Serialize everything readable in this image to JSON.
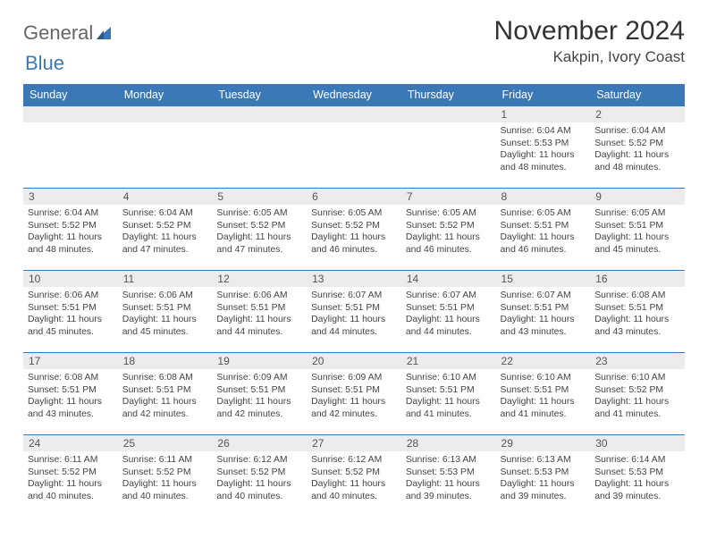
{
  "logo": {
    "text1": "General",
    "text2": "Blue"
  },
  "title": "November 2024",
  "location": "Kakpin, Ivory Coast",
  "colors": {
    "header_bg": "#3a78b8",
    "header_text": "#ffffff",
    "daynum_bg": "#ececec",
    "border": "#3a78b8",
    "text": "#444444",
    "logo_general": "#666666",
    "logo_blue": "#3a78b8"
  },
  "weekdays": [
    "Sunday",
    "Monday",
    "Tuesday",
    "Wednesday",
    "Thursday",
    "Friday",
    "Saturday"
  ],
  "weeks": [
    [
      null,
      null,
      null,
      null,
      null,
      {
        "n": "1",
        "sr": "Sunrise: 6:04 AM",
        "ss": "Sunset: 5:53 PM",
        "dl": "Daylight: 11 hours and 48 minutes."
      },
      {
        "n": "2",
        "sr": "Sunrise: 6:04 AM",
        "ss": "Sunset: 5:52 PM",
        "dl": "Daylight: 11 hours and 48 minutes."
      }
    ],
    [
      {
        "n": "3",
        "sr": "Sunrise: 6:04 AM",
        "ss": "Sunset: 5:52 PM",
        "dl": "Daylight: 11 hours and 48 minutes."
      },
      {
        "n": "4",
        "sr": "Sunrise: 6:04 AM",
        "ss": "Sunset: 5:52 PM",
        "dl": "Daylight: 11 hours and 47 minutes."
      },
      {
        "n": "5",
        "sr": "Sunrise: 6:05 AM",
        "ss": "Sunset: 5:52 PM",
        "dl": "Daylight: 11 hours and 47 minutes."
      },
      {
        "n": "6",
        "sr": "Sunrise: 6:05 AM",
        "ss": "Sunset: 5:52 PM",
        "dl": "Daylight: 11 hours and 46 minutes."
      },
      {
        "n": "7",
        "sr": "Sunrise: 6:05 AM",
        "ss": "Sunset: 5:52 PM",
        "dl": "Daylight: 11 hours and 46 minutes."
      },
      {
        "n": "8",
        "sr": "Sunrise: 6:05 AM",
        "ss": "Sunset: 5:51 PM",
        "dl": "Daylight: 11 hours and 46 minutes."
      },
      {
        "n": "9",
        "sr": "Sunrise: 6:05 AM",
        "ss": "Sunset: 5:51 PM",
        "dl": "Daylight: 11 hours and 45 minutes."
      }
    ],
    [
      {
        "n": "10",
        "sr": "Sunrise: 6:06 AM",
        "ss": "Sunset: 5:51 PM",
        "dl": "Daylight: 11 hours and 45 minutes."
      },
      {
        "n": "11",
        "sr": "Sunrise: 6:06 AM",
        "ss": "Sunset: 5:51 PM",
        "dl": "Daylight: 11 hours and 45 minutes."
      },
      {
        "n": "12",
        "sr": "Sunrise: 6:06 AM",
        "ss": "Sunset: 5:51 PM",
        "dl": "Daylight: 11 hours and 44 minutes."
      },
      {
        "n": "13",
        "sr": "Sunrise: 6:07 AM",
        "ss": "Sunset: 5:51 PM",
        "dl": "Daylight: 11 hours and 44 minutes."
      },
      {
        "n": "14",
        "sr": "Sunrise: 6:07 AM",
        "ss": "Sunset: 5:51 PM",
        "dl": "Daylight: 11 hours and 44 minutes."
      },
      {
        "n": "15",
        "sr": "Sunrise: 6:07 AM",
        "ss": "Sunset: 5:51 PM",
        "dl": "Daylight: 11 hours and 43 minutes."
      },
      {
        "n": "16",
        "sr": "Sunrise: 6:08 AM",
        "ss": "Sunset: 5:51 PM",
        "dl": "Daylight: 11 hours and 43 minutes."
      }
    ],
    [
      {
        "n": "17",
        "sr": "Sunrise: 6:08 AM",
        "ss": "Sunset: 5:51 PM",
        "dl": "Daylight: 11 hours and 43 minutes."
      },
      {
        "n": "18",
        "sr": "Sunrise: 6:08 AM",
        "ss": "Sunset: 5:51 PM",
        "dl": "Daylight: 11 hours and 42 minutes."
      },
      {
        "n": "19",
        "sr": "Sunrise: 6:09 AM",
        "ss": "Sunset: 5:51 PM",
        "dl": "Daylight: 11 hours and 42 minutes."
      },
      {
        "n": "20",
        "sr": "Sunrise: 6:09 AM",
        "ss": "Sunset: 5:51 PM",
        "dl": "Daylight: 11 hours and 42 minutes."
      },
      {
        "n": "21",
        "sr": "Sunrise: 6:10 AM",
        "ss": "Sunset: 5:51 PM",
        "dl": "Daylight: 11 hours and 41 minutes."
      },
      {
        "n": "22",
        "sr": "Sunrise: 6:10 AM",
        "ss": "Sunset: 5:51 PM",
        "dl": "Daylight: 11 hours and 41 minutes."
      },
      {
        "n": "23",
        "sr": "Sunrise: 6:10 AM",
        "ss": "Sunset: 5:52 PM",
        "dl": "Daylight: 11 hours and 41 minutes."
      }
    ],
    [
      {
        "n": "24",
        "sr": "Sunrise: 6:11 AM",
        "ss": "Sunset: 5:52 PM",
        "dl": "Daylight: 11 hours and 40 minutes."
      },
      {
        "n": "25",
        "sr": "Sunrise: 6:11 AM",
        "ss": "Sunset: 5:52 PM",
        "dl": "Daylight: 11 hours and 40 minutes."
      },
      {
        "n": "26",
        "sr": "Sunrise: 6:12 AM",
        "ss": "Sunset: 5:52 PM",
        "dl": "Daylight: 11 hours and 40 minutes."
      },
      {
        "n": "27",
        "sr": "Sunrise: 6:12 AM",
        "ss": "Sunset: 5:52 PM",
        "dl": "Daylight: 11 hours and 40 minutes."
      },
      {
        "n": "28",
        "sr": "Sunrise: 6:13 AM",
        "ss": "Sunset: 5:53 PM",
        "dl": "Daylight: 11 hours and 39 minutes."
      },
      {
        "n": "29",
        "sr": "Sunrise: 6:13 AM",
        "ss": "Sunset: 5:53 PM",
        "dl": "Daylight: 11 hours and 39 minutes."
      },
      {
        "n": "30",
        "sr": "Sunrise: 6:14 AM",
        "ss": "Sunset: 5:53 PM",
        "dl": "Daylight: 11 hours and 39 minutes."
      }
    ]
  ]
}
